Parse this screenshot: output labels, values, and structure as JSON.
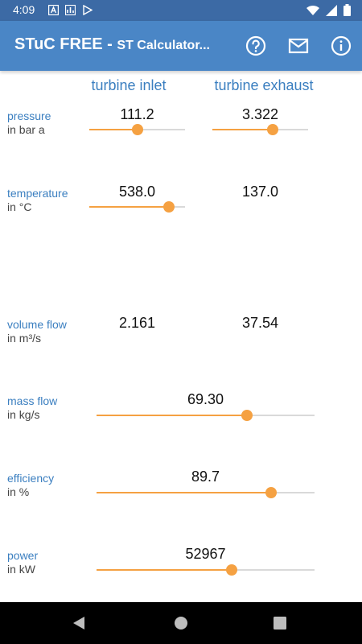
{
  "status_bar": {
    "time": "4:09"
  },
  "app_bar": {
    "title": "STuC FREE - ",
    "subtitle": "ST Calculator...",
    "icons": [
      "help-icon",
      "mail-icon",
      "info-icon"
    ]
  },
  "columns": {
    "inlet": "turbine inlet",
    "exhaust": "turbine exhaust"
  },
  "rows": {
    "pressure": {
      "label": "pressure",
      "unit": "in bar a",
      "inlet_value": "111.2",
      "inlet_slider": 0.5,
      "exhaust_value": "3.322",
      "exhaust_slider": 0.63
    },
    "temperature": {
      "label": "temperature",
      "unit": "in °C",
      "inlet_value": "538.0",
      "inlet_slider": 0.83,
      "exhaust_value": "137.0"
    },
    "volume_flow": {
      "label": "volume flow",
      "unit": "in m³/s",
      "inlet_value": "2.161",
      "exhaust_value": "37.54"
    },
    "mass_flow": {
      "label": "mass flow",
      "unit": "in kg/s",
      "value": "69.30",
      "slider": 0.69
    },
    "efficiency": {
      "label": "efficiency",
      "unit": "in %",
      "value": "89.7",
      "slider": 0.8
    },
    "power": {
      "label": "power",
      "unit": "in kW",
      "value": "52967",
      "slider": 0.62
    }
  },
  "colors": {
    "status_bar": "#3c6aa5",
    "app_bar": "#4a86c6",
    "accent": "#f5a142",
    "label": "#3b7fc0"
  }
}
